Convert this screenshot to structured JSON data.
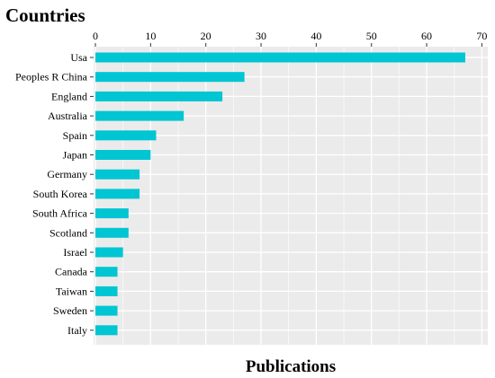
{
  "chart_data": {
    "type": "bar",
    "orientation": "horizontal",
    "title": "Countries",
    "xlabel": "Publications",
    "ylabel": "",
    "xlim": [
      0,
      70
    ],
    "x_ticks": [
      0,
      10,
      20,
      30,
      40,
      50,
      60,
      70
    ],
    "x_axis_position": "top",
    "grid": true,
    "categories": [
      "Usa",
      "Peoples R China",
      "England",
      "Australia",
      "Spain",
      "Japan",
      "Germany",
      "South Korea",
      "South Africa",
      "Scotland",
      "Israel",
      "Canada",
      "Taiwan",
      "Sweden",
      "Italy"
    ],
    "values": [
      67,
      27,
      23,
      16,
      11,
      10,
      8,
      8,
      6,
      6,
      5,
      4,
      4,
      4,
      4
    ]
  },
  "colors": {
    "bar": "#00c5d2",
    "panel": "#ebebeb",
    "grid": "#ffffff",
    "text": "#000000"
  }
}
